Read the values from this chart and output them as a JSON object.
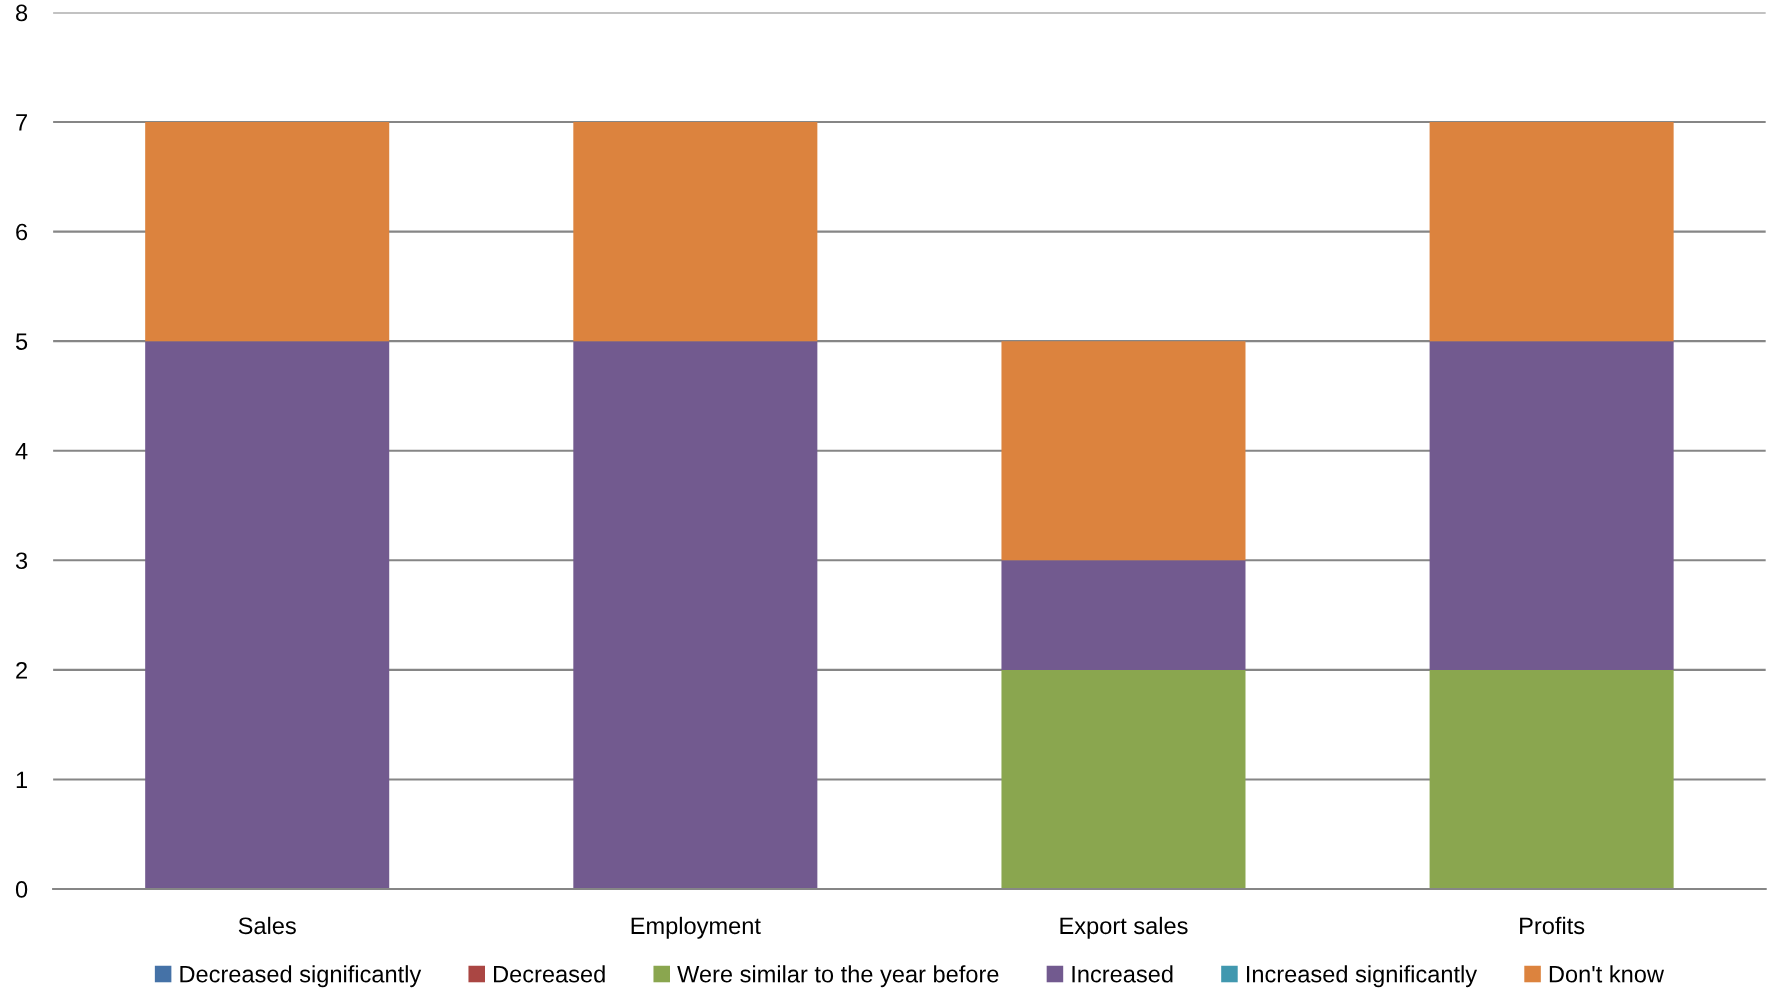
{
  "chart_data": {
    "type": "bar",
    "stacked": true,
    "categories": [
      "Sales",
      "Employment",
      "Export sales",
      "Profits"
    ],
    "series": [
      {
        "name": "Decreased significantly",
        "color": "#4572a7",
        "values": [
          0,
          0,
          0,
          0
        ]
      },
      {
        "name": "Decreased",
        "color": "#aa4643",
        "values": [
          0,
          0,
          0,
          0
        ]
      },
      {
        "name": "Were similar to the year before",
        "color": "#8aa64f",
        "values": [
          0,
          0,
          2,
          2
        ]
      },
      {
        "name": "Increased",
        "color": "#725a8f",
        "values": [
          5,
          5,
          1,
          3
        ]
      },
      {
        "name": "Increased significantly",
        "color": "#4198af",
        "values": [
          0,
          0,
          0,
          0
        ]
      },
      {
        "name": "Don't know",
        "color": "#dc833e",
        "values": [
          2,
          2,
          2,
          2
        ]
      }
    ],
    "ylim": [
      0,
      8
    ],
    "yticks": [
      0,
      1,
      2,
      3,
      4,
      5,
      6,
      7,
      8
    ],
    "grid": "y",
    "legend": "bottom"
  }
}
